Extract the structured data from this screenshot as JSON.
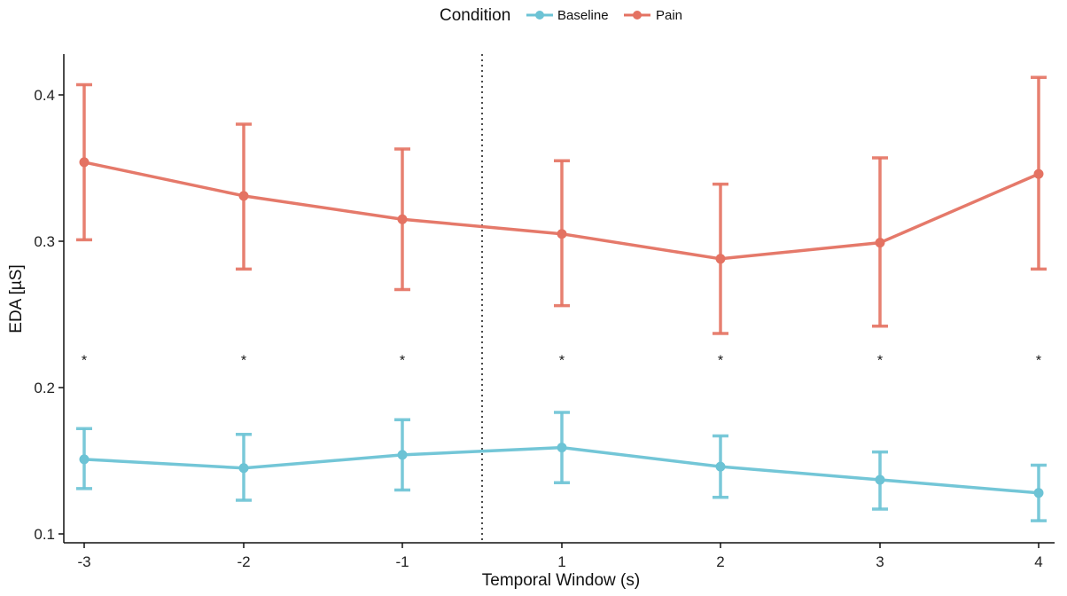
{
  "chart_data": {
    "type": "line",
    "title": "",
    "xlabel": "Temporal Window (s)",
    "ylabel": "EDA [µS]",
    "x": [
      "-3",
      "-2",
      "-1",
      "1",
      "2",
      "3",
      "4"
    ],
    "ylim": [
      0.1,
      0.425
    ],
    "yticks": [
      "0.1",
      "0.2",
      "0.3",
      "0.4"
    ],
    "onset_marker": {
      "between": [
        "-1",
        "1"
      ],
      "style": "dotted"
    },
    "legend": {
      "title": "Condition",
      "position": "top"
    },
    "series": [
      {
        "name": "Baseline",
        "color": "#6cc3d5",
        "values": [
          0.151,
          0.145,
          0.154,
          0.159,
          0.146,
          0.137,
          0.128
        ],
        "error_low": [
          0.131,
          0.123,
          0.13,
          0.135,
          0.125,
          0.117,
          0.109
        ],
        "error_high": [
          0.172,
          0.168,
          0.178,
          0.183,
          0.167,
          0.156,
          0.147
        ]
      },
      {
        "name": "Pain",
        "color": "#e47262",
        "values": [
          0.354,
          0.331,
          0.315,
          0.305,
          0.288,
          0.299,
          0.346
        ],
        "error_low": [
          0.301,
          0.281,
          0.267,
          0.256,
          0.237,
          0.242,
          0.281
        ],
        "error_high": [
          0.407,
          0.38,
          0.363,
          0.355,
          0.339,
          0.357,
          0.412
        ]
      }
    ],
    "significance": {
      "symbol": "*",
      "y": 0.221,
      "categories": [
        "-3",
        "-2",
        "-1",
        "1",
        "2",
        "3",
        "4"
      ]
    }
  }
}
